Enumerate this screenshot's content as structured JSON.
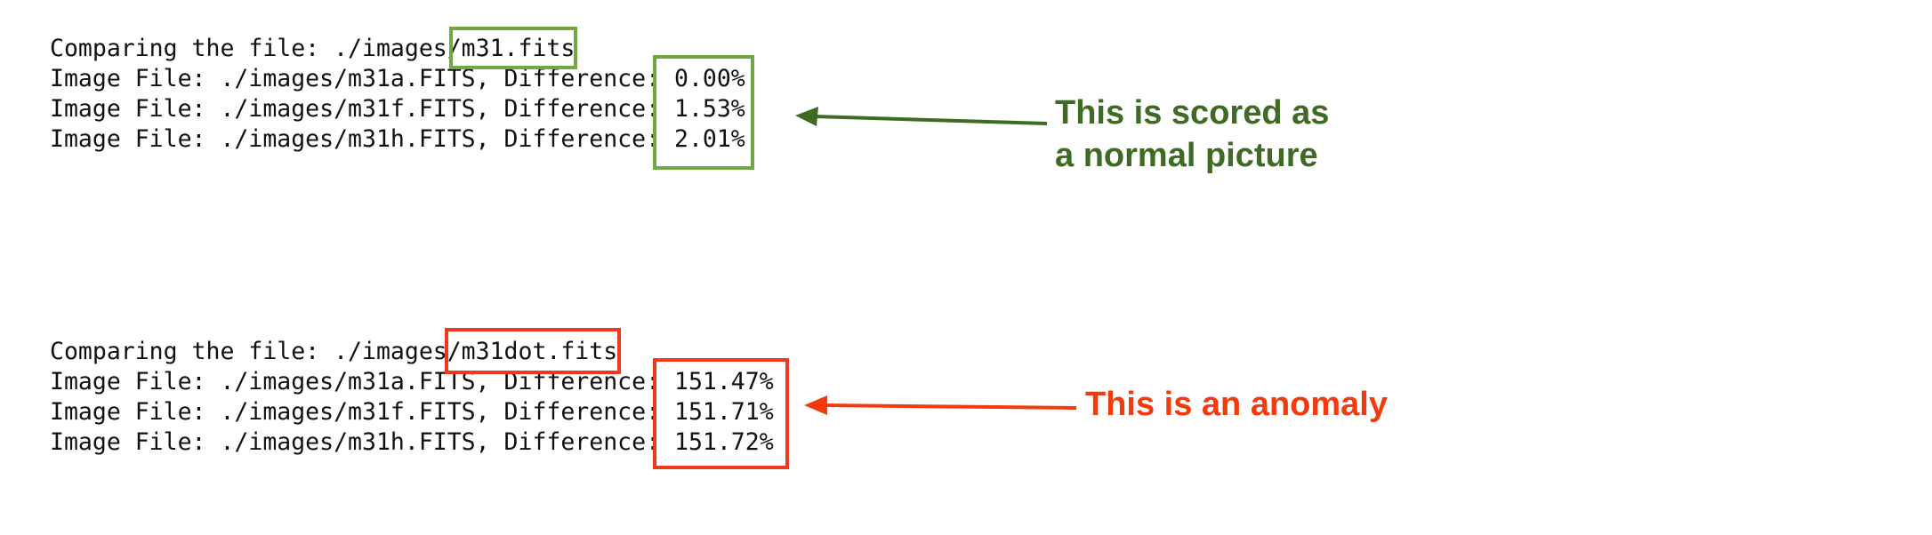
{
  "colors": {
    "normal_box": "#70a845",
    "normal_text": "#3f6a24",
    "anomaly_box": "#ee3a1c",
    "anomaly_text": "#f23a0d",
    "terminal_text": "#111111"
  },
  "normal_block": {
    "lines": [
      "Comparing the file: ./images/m31.fits",
      "Image File: ./images/m31a.FITS, Difference: 0.00%",
      "Image File: ./images/m31f.FITS, Difference: 1.53%",
      "Image File: ./images/m31h.FITS, Difference: 2.01%"
    ],
    "callout": [
      "This is scored as",
      "a normal picture"
    ]
  },
  "anomaly_block": {
    "lines": [
      "Comparing the file: ./images/m31dot.fits",
      "Image File: ./images/m31a.FITS, Difference: 151.47%",
      "Image File: ./images/m31f.FITS, Difference: 151.71%",
      "Image File: ./images/m31h.FITS, Difference: 151.72%"
    ],
    "callout": [
      "This is an anomaly"
    ]
  }
}
